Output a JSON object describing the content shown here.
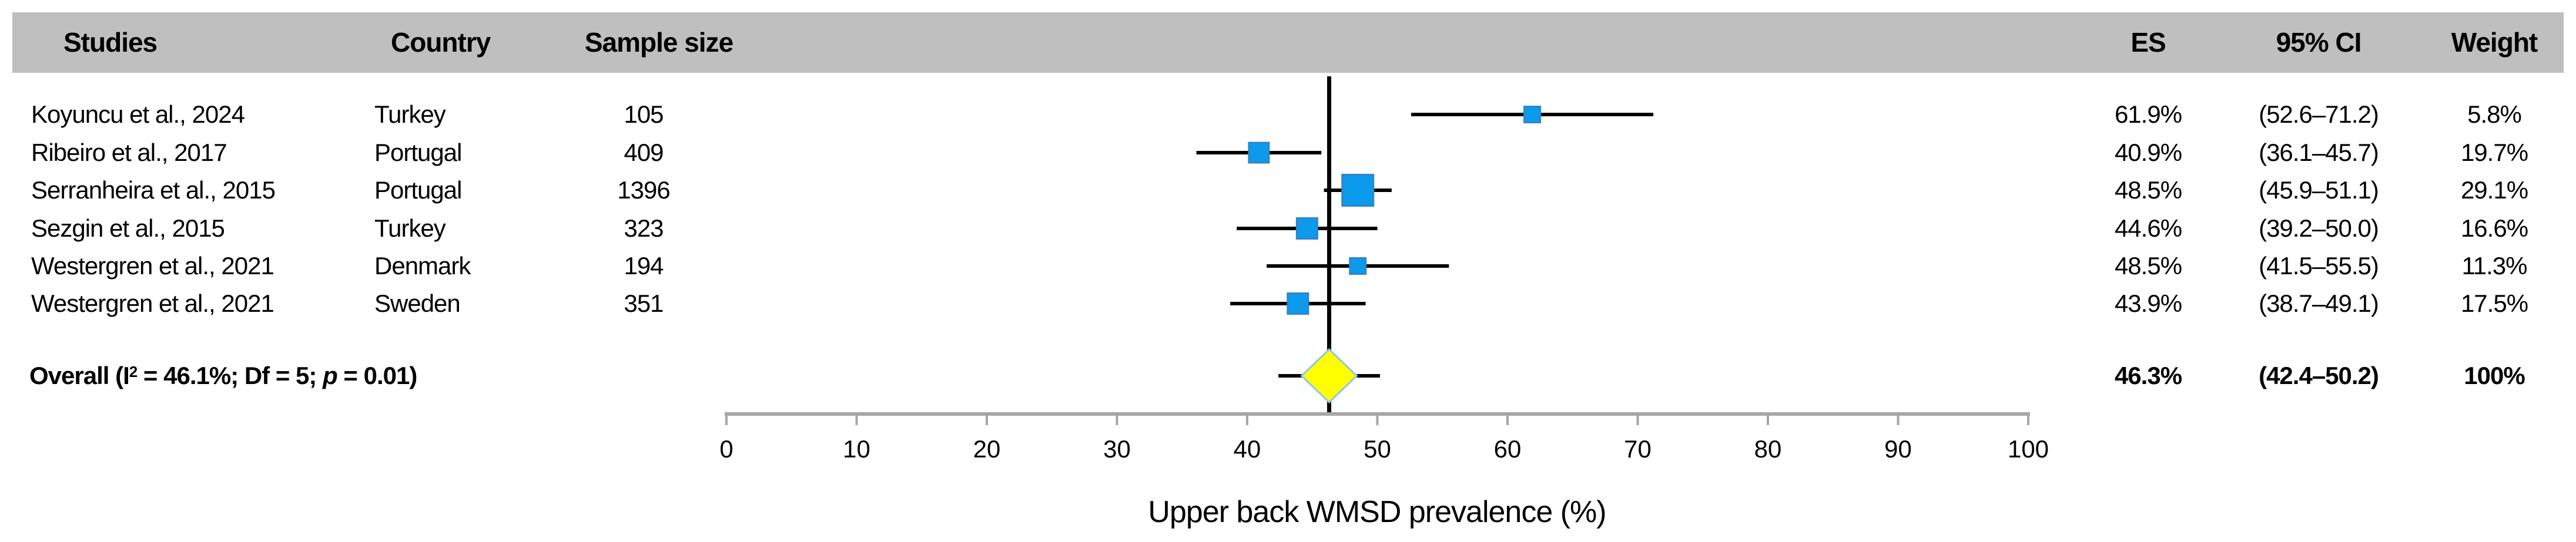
{
  "header": {
    "studies": "Studies",
    "country": "Country",
    "sample_size": "Sample size",
    "es": "ES",
    "ci": "95% CI",
    "weight": "Weight"
  },
  "overall": {
    "label_segments": [
      {
        "text": "Overall (I",
        "style": "normal"
      },
      {
        "text": "2",
        "style": "sup"
      },
      {
        "text": " = 46.1%; Df = 5; ",
        "style": "normal"
      },
      {
        "text": "p",
        "style": "italic"
      },
      {
        "text": " = 0.01)",
        "style": "normal"
      }
    ],
    "es_label": "46.3%",
    "ci_label": "(42.4–50.2)",
    "weight_label": "100%"
  },
  "chart_data": {
    "type": "scatter",
    "subtype": "forest-plot",
    "title": "",
    "xlabel": "Upper back WMSD prevalence (%)",
    "ylabel": "",
    "xlim": [
      0,
      100
    ],
    "xticks": [
      0,
      10,
      20,
      30,
      40,
      50,
      60,
      70,
      80,
      90,
      100
    ],
    "grid": false,
    "studies": [
      {
        "study": "Koyuncu et al., 2024",
        "country": "Turkey",
        "sample_size": "105",
        "es": 61.9,
        "ci_low": 52.6,
        "ci_high": 71.2,
        "weight": 5.8,
        "es_label": "61.9%",
        "ci_label": "(52.6–71.2)",
        "weight_label": "5.8%",
        "marker_size": 27
      },
      {
        "study": "Ribeiro et al., 2017",
        "country": "Portugal",
        "sample_size": "409",
        "es": 40.9,
        "ci_low": 36.1,
        "ci_high": 45.7,
        "weight": 19.7,
        "es_label": "40.9%",
        "ci_label": "(36.1–45.7)",
        "weight_label": "19.7%",
        "marker_size": 34
      },
      {
        "study": "Serranheira et al., 2015",
        "country": "Portugal",
        "sample_size": "1396",
        "es": 48.5,
        "ci_low": 45.9,
        "ci_high": 51.1,
        "weight": 29.1,
        "es_label": "48.5%",
        "ci_label": "(45.9–51.1)",
        "weight_label": "29.1%",
        "marker_size": 53
      },
      {
        "study": "Sezgin et al., 2015",
        "country": "Turkey",
        "sample_size": "323",
        "es": 44.6,
        "ci_low": 39.2,
        "ci_high": 50.0,
        "weight": 16.6,
        "es_label": "44.6%",
        "ci_label": "(39.2–50.0)",
        "weight_label": "16.6%",
        "marker_size": 35
      },
      {
        "study": "Westergren et al., 2021",
        "country": "Denmark",
        "sample_size": "194",
        "es": 48.5,
        "ci_low": 41.5,
        "ci_high": 55.5,
        "weight": 11.3,
        "es_label": "48.5%",
        "ci_label": "(41.5–55.5)",
        "weight_label": "11.3%",
        "marker_size": 27
      },
      {
        "study": "Westergren et al., 2021",
        "country": "Sweden",
        "sample_size": "351",
        "es": 43.9,
        "ci_low": 38.7,
        "ci_high": 49.1,
        "weight": 17.5,
        "es_label": "43.9%",
        "ci_label": "(38.7–49.1)",
        "weight_label": "17.5%",
        "marker_size": 35
      }
    ],
    "overall": {
      "es": 46.3,
      "ci_low": 42.4,
      "ci_high": 50.2,
      "weight": 100,
      "i_squared": "46.1%",
      "df": 5,
      "p": 0.01
    },
    "colors": {
      "square_fill": "#0c9aec",
      "square_stroke": "#2f86c8",
      "diamond_fill": "#ffff00",
      "diamond_stroke": "#8fc7e6",
      "ci_line": "#000000",
      "overall_vline": "#000000",
      "axis": "#a6a6a6",
      "header_band": "#bfbfbf",
      "text": "#000000"
    }
  }
}
